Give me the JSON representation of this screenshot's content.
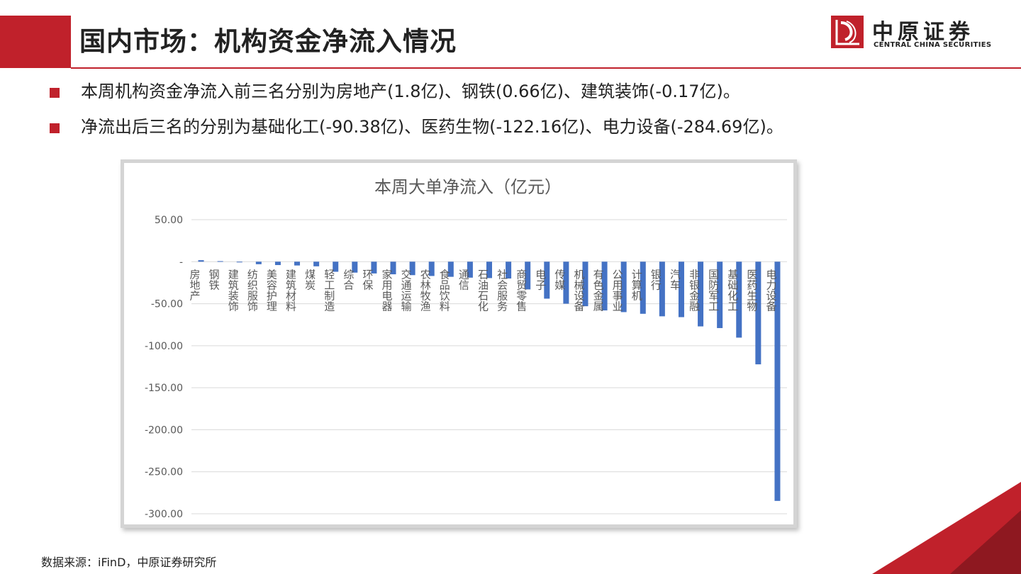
{
  "header": {
    "title": "国内市场：机构资金净流入情况",
    "logo_cn": "中原证券",
    "logo_en": "CENTRAL CHINA SECURITIES"
  },
  "bullets": [
    "本周机构资金净流入前三名分别为房地产(1.8亿)、钢铁(0.66亿)、建筑装饰(-0.17亿)。",
    "净流出后三名的分别为基础化工(-90.38亿)、医药生物(-122.16亿)、电力设备(-284.69亿)。"
  ],
  "footer": {
    "source": "数据来源：iFinD，中原证券研究所"
  },
  "colors": {
    "accent": "#c0212b",
    "bar": "#4472c4"
  },
  "chart_data": {
    "type": "bar",
    "title": "本周大单净流入（亿元）",
    "xlabel": "",
    "ylabel": "",
    "ylim": [
      -300,
      50
    ],
    "ytick_labels": [
      "50.00",
      "-",
      "-50.00",
      "-100.00",
      "-150.00",
      "-200.00",
      "-250.00",
      "-300.00"
    ],
    "yticks": [
      50,
      0,
      -50,
      -100,
      -150,
      -200,
      -250,
      -300
    ],
    "grid": true,
    "legend": "none",
    "categories": [
      "房地产",
      "钢铁",
      "建筑装饰",
      "纺织服饰",
      "美容护理",
      "建筑材料",
      "煤炭",
      "轻工制造",
      "综合",
      "环保",
      "家用电器",
      "交通运输",
      "农林牧渔",
      "食品饮料",
      "通信",
      "石油石化",
      "社会服务",
      "商贸零售",
      "电子",
      "传媒",
      "机械设备",
      "有色金属",
      "公用事业",
      "计算机",
      "银行",
      "汽车",
      "非银金融",
      "国防军工",
      "基础化工",
      "医药生物",
      "电力设备"
    ],
    "values": [
      1.8,
      0.66,
      -0.17,
      -3,
      -4,
      -4.5,
      -5.5,
      -12,
      -13,
      -14,
      -15,
      -16,
      -17,
      -18,
      -19,
      -19.5,
      -20,
      -33,
      -44,
      -50,
      -53,
      -58,
      -60,
      -62,
      -65,
      -66,
      -77,
      -79,
      -90.38,
      -122.16,
      -284.69
    ]
  }
}
